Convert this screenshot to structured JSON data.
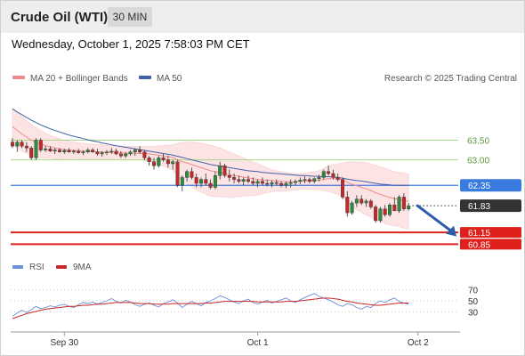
{
  "header": {
    "instrument": "Crude Oil (WTI)",
    "timeframe": "30 MIN",
    "datetime": "Wednesday, October 1, 2025 7:58:03 PM CET"
  },
  "legend": {
    "ma20_bb": "MA 20 + Bollinger Bands",
    "ma50": "MA 50",
    "attribution": "Research © 2025 Trading Central",
    "rsi": "RSI",
    "rsi_ma": "9MA"
  },
  "colors": {
    "ma20": "#f08a8a",
    "bollinger_fill": "#fde0e0",
    "ma50": "#4060a8",
    "resistance": "#a8d88a",
    "pivot": "#3a7be0",
    "current": "#333333",
    "support": "#e0201a",
    "arrow": "#2a5caa",
    "candle_up": "#2e8b3e",
    "candle_down": "#c62828",
    "rsi": "#6a8fd8",
    "rsi_ma": "#c62828"
  },
  "chart_data": [
    {
      "type": "candlestick",
      "title": "",
      "x_tick_labels": [
        "Sep 30",
        "Oct 1",
        "Oct 2"
      ],
      "ylim": [
        60.7,
        64.6
      ],
      "ohlc": [
        [
          63.45,
          63.55,
          63.3,
          63.35
        ],
        [
          63.35,
          63.5,
          63.2,
          63.45
        ],
        [
          63.45,
          63.5,
          63.3,
          63.35
        ],
        [
          63.35,
          63.45,
          63.2,
          63.3
        ],
        [
          63.3,
          63.35,
          63.0,
          63.05
        ],
        [
          63.05,
          63.55,
          63.0,
          63.5
        ],
        [
          63.5,
          63.55,
          63.2,
          63.25
        ],
        [
          63.25,
          63.35,
          63.2,
          63.28
        ],
        [
          63.28,
          63.35,
          63.2,
          63.22
        ],
        [
          63.22,
          63.3,
          63.15,
          63.25
        ],
        [
          63.25,
          63.3,
          63.18,
          63.2
        ],
        [
          63.2,
          63.28,
          63.15,
          63.24
        ],
        [
          63.24,
          63.3,
          63.18,
          63.2
        ],
        [
          63.2,
          63.26,
          63.15,
          63.22
        ],
        [
          63.22,
          63.28,
          63.16,
          63.18
        ],
        [
          63.18,
          63.24,
          63.12,
          63.2
        ],
        [
          63.2,
          63.3,
          63.16,
          63.25
        ],
        [
          63.25,
          63.3,
          63.18,
          63.2
        ],
        [
          63.2,
          63.28,
          63.1,
          63.15
        ],
        [
          63.15,
          63.22,
          63.08,
          63.18
        ],
        [
          63.18,
          63.25,
          63.12,
          63.2
        ],
        [
          63.2,
          63.3,
          63.15,
          63.22
        ],
        [
          63.22,
          63.28,
          63.12,
          63.15
        ],
        [
          63.15,
          63.22,
          63.05,
          63.1
        ],
        [
          63.1,
          63.2,
          63.05,
          63.15
        ],
        [
          63.15,
          63.25,
          63.1,
          63.2
        ],
        [
          63.2,
          63.3,
          63.1,
          63.25
        ],
        [
          63.25,
          63.35,
          63.15,
          63.2
        ],
        [
          63.2,
          63.25,
          63.0,
          63.05
        ],
        [
          63.05,
          63.1,
          62.85,
          62.95
        ],
        [
          62.95,
          63.05,
          62.75,
          62.85
        ],
        [
          62.85,
          63.1,
          62.8,
          63.05
        ],
        [
          63.05,
          63.15,
          62.95,
          63.0
        ],
        [
          63.0,
          63.1,
          62.8,
          62.9
        ],
        [
          62.9,
          63.0,
          62.75,
          62.95
        ],
        [
          62.95,
          63.0,
          62.3,
          62.35
        ],
        [
          62.35,
          62.6,
          62.2,
          62.55
        ],
        [
          62.55,
          62.75,
          62.45,
          62.7
        ],
        [
          62.7,
          62.8,
          62.5,
          62.55
        ],
        [
          62.55,
          62.65,
          62.3,
          62.4
        ],
        [
          62.4,
          62.55,
          62.3,
          62.5
        ],
        [
          62.5,
          62.65,
          62.35,
          62.4
        ],
        [
          62.4,
          62.5,
          62.25,
          62.3
        ],
        [
          62.3,
          62.7,
          62.25,
          62.6
        ],
        [
          62.6,
          62.95,
          62.5,
          62.85
        ],
        [
          62.85,
          62.9,
          62.55,
          62.6
        ],
        [
          62.6,
          62.75,
          62.45,
          62.55
        ],
        [
          62.55,
          62.65,
          62.4,
          62.5
        ],
        [
          62.5,
          62.6,
          62.4,
          62.45
        ],
        [
          62.45,
          62.55,
          62.35,
          62.5
        ],
        [
          62.5,
          62.6,
          62.4,
          62.45
        ],
        [
          62.45,
          62.55,
          62.35,
          62.4
        ],
        [
          62.4,
          62.5,
          62.3,
          62.45
        ],
        [
          62.45,
          62.55,
          62.35,
          62.4
        ],
        [
          62.4,
          62.5,
          62.32,
          62.38
        ],
        [
          62.38,
          62.48,
          62.3,
          62.42
        ],
        [
          62.42,
          62.5,
          62.35,
          62.4
        ],
        [
          62.4,
          62.45,
          62.3,
          62.35
        ],
        [
          62.35,
          62.45,
          62.28,
          62.4
        ],
        [
          62.4,
          62.5,
          62.3,
          62.42
        ],
        [
          62.42,
          62.5,
          62.35,
          62.45
        ],
        [
          62.45,
          62.55,
          62.38,
          62.48
        ],
        [
          62.48,
          62.58,
          62.4,
          62.5
        ],
        [
          62.5,
          62.55,
          62.4,
          62.45
        ],
        [
          62.45,
          62.55,
          62.4,
          62.52
        ],
        [
          62.52,
          62.62,
          62.45,
          62.55
        ],
        [
          62.55,
          62.75,
          62.5,
          62.7
        ],
        [
          62.7,
          62.85,
          62.6,
          62.65
        ],
        [
          62.65,
          62.75,
          62.5,
          62.55
        ],
        [
          62.55,
          62.65,
          62.45,
          62.5
        ],
        [
          62.5,
          62.55,
          62.0,
          62.05
        ],
        [
          62.05,
          62.2,
          61.55,
          61.65
        ],
        [
          61.65,
          61.95,
          61.6,
          61.9
        ],
        [
          61.9,
          62.1,
          61.8,
          62.0
        ],
        [
          62.0,
          62.1,
          61.85,
          61.9
        ],
        [
          61.9,
          62.0,
          61.8,
          61.95
        ],
        [
          61.95,
          62.0,
          61.75,
          61.8
        ],
        [
          61.8,
          61.85,
          61.4,
          61.45
        ],
        [
          61.45,
          61.8,
          61.4,
          61.75
        ],
        [
          61.75,
          61.85,
          61.55,
          61.6
        ],
        [
          61.6,
          61.9,
          61.55,
          61.85
        ],
        [
          61.85,
          62.05,
          61.7,
          61.7
        ],
        [
          61.7,
          62.1,
          61.65,
          62.05
        ],
        [
          62.05,
          62.15,
          61.7,
          61.75
        ],
        [
          61.75,
          61.9,
          61.7,
          61.83
        ]
      ],
      "ma20": [
        63.85,
        63.75,
        63.66,
        63.58,
        63.5,
        63.44,
        63.4,
        63.36,
        63.33,
        63.3,
        63.28,
        63.26,
        63.25,
        63.24,
        63.23,
        63.22,
        63.22,
        63.21,
        63.2,
        63.2,
        63.19,
        63.19,
        63.18,
        63.18,
        63.17,
        63.17,
        63.17,
        63.17,
        63.16,
        63.15,
        63.13,
        63.12,
        63.1,
        63.08,
        63.06,
        63.0,
        62.95,
        62.92,
        62.88,
        62.84,
        62.8,
        62.76,
        62.72,
        62.7,
        62.68,
        62.65,
        62.62,
        62.6,
        62.58,
        62.56,
        62.54,
        62.52,
        62.5,
        62.49,
        62.48,
        62.47,
        62.46,
        62.45,
        62.44,
        62.44,
        62.44,
        62.45,
        62.46,
        62.46,
        62.47,
        62.48,
        62.5,
        62.52,
        62.52,
        62.51,
        62.48,
        62.43,
        62.38,
        62.34,
        62.3,
        62.26,
        62.22,
        62.16,
        62.12,
        62.08,
        62.04,
        62.01,
        61.99,
        61.96,
        61.94
      ],
      "bb_upper": [
        64.3,
        64.2,
        64.1,
        64.0,
        63.9,
        63.82,
        63.75,
        63.68,
        63.62,
        63.58,
        63.54,
        63.5,
        63.47,
        63.45,
        63.43,
        63.42,
        63.41,
        63.4,
        63.39,
        63.38,
        63.37,
        63.36,
        63.36,
        63.35,
        63.35,
        63.34,
        63.34,
        63.34,
        63.34,
        63.34,
        63.34,
        63.35,
        63.36,
        63.37,
        63.38,
        63.42,
        63.44,
        63.45,
        63.45,
        63.44,
        63.42,
        63.4,
        63.37,
        63.34,
        63.3,
        63.25,
        63.2,
        63.15,
        63.1,
        63.05,
        63.0,
        62.95,
        62.9,
        62.85,
        62.8,
        62.75,
        62.72,
        62.7,
        62.68,
        62.66,
        62.65,
        62.65,
        62.66,
        62.68,
        62.7,
        62.72,
        62.78,
        62.85,
        62.88,
        62.9,
        62.92,
        62.94,
        62.95,
        62.95,
        62.94,
        62.92,
        62.9,
        62.86,
        62.82,
        62.78,
        62.74,
        62.7,
        62.68,
        62.66,
        62.64
      ],
      "bb_lower": [
        63.4,
        63.3,
        63.22,
        63.16,
        63.1,
        63.06,
        63.05,
        63.04,
        63.04,
        63.02,
        63.02,
        63.02,
        63.03,
        63.03,
        63.03,
        63.02,
        63.03,
        63.02,
        63.01,
        63.02,
        63.01,
        63.02,
        63.0,
        63.01,
        62.99,
        63.0,
        63.0,
        63.0,
        62.98,
        62.96,
        62.92,
        62.89,
        62.84,
        62.79,
        62.74,
        62.58,
        62.46,
        62.39,
        62.31,
        62.24,
        62.18,
        62.12,
        62.07,
        62.06,
        62.06,
        62.05,
        62.04,
        62.05,
        62.06,
        62.07,
        62.08,
        62.09,
        62.1,
        62.13,
        62.16,
        62.19,
        62.2,
        62.2,
        62.2,
        62.22,
        62.23,
        62.25,
        62.26,
        62.24,
        62.24,
        62.24,
        62.22,
        62.19,
        62.16,
        62.12,
        62.04,
        61.92,
        61.81,
        61.73,
        61.66,
        61.6,
        61.54,
        61.46,
        61.42,
        61.38,
        61.34,
        61.32,
        61.3,
        61.26,
        61.24
      ],
      "ma50": [
        64.3,
        64.22,
        64.15,
        64.08,
        64.01,
        63.95,
        63.89,
        63.84,
        63.79,
        63.75,
        63.71,
        63.67,
        63.63,
        63.6,
        63.57,
        63.54,
        63.51,
        63.48,
        63.46,
        63.43,
        63.41,
        63.38,
        63.36,
        63.34,
        63.32,
        63.3,
        63.28,
        63.26,
        63.24,
        63.22,
        63.2,
        63.18,
        63.16,
        63.14,
        63.12,
        63.09,
        63.06,
        63.03,
        63.0,
        62.97,
        62.94,
        62.91,
        62.88,
        62.86,
        62.84,
        62.82,
        62.8,
        62.78,
        62.76,
        62.74,
        62.72,
        62.71,
        62.7,
        62.68,
        62.67,
        62.66,
        62.65,
        62.64,
        62.63,
        62.62,
        62.61,
        62.6,
        62.6,
        62.59,
        62.58,
        62.58,
        62.57,
        62.57,
        62.56,
        62.55,
        62.53,
        62.51,
        62.49,
        62.47,
        62.46,
        62.44,
        62.42,
        62.4,
        62.38,
        62.37,
        62.36,
        62.35,
        62.35,
        62.35,
        62.35
      ],
      "levels": [
        {
          "label": "63.50",
          "value": 63.5,
          "kind": "resistance"
        },
        {
          "label": "63.00",
          "value": 63.0,
          "kind": "resistance"
        },
        {
          "label": "62.35",
          "value": 62.35,
          "kind": "pivot"
        },
        {
          "label": "61.83",
          "value": 61.83,
          "kind": "current"
        },
        {
          "label": "61.15",
          "value": 61.15,
          "kind": "support"
        },
        {
          "label": "60.85",
          "value": 60.85,
          "kind": "support"
        }
      ],
      "forecast_arrow": {
        "from_value": 61.83,
        "to_value": 61.05,
        "direction": "down"
      }
    },
    {
      "type": "line",
      "title": "",
      "series_names": [
        "RSI",
        "9MA"
      ],
      "yticks": [
        70,
        50,
        30
      ],
      "ylim": [
        10,
        90
      ],
      "rsi": [
        22,
        28,
        33,
        29,
        34,
        40,
        36,
        38,
        41,
        39,
        42,
        44,
        40,
        38,
        43,
        47,
        45,
        48,
        44,
        47,
        50,
        54,
        49,
        46,
        51,
        48,
        43,
        40,
        44,
        46,
        42,
        39,
        45,
        48,
        52,
        46,
        38,
        44,
        49,
        45,
        41,
        47,
        50,
        54,
        59,
        56,
        52,
        48,
        45,
        50,
        53,
        47,
        44,
        48,
        51,
        46,
        49,
        52,
        55,
        50,
        47,
        52,
        56,
        60,
        63,
        58,
        55,
        52,
        48,
        43,
        40,
        45,
        43,
        38,
        35,
        40,
        38,
        45,
        50,
        47,
        52,
        55,
        49,
        46,
        44
      ],
      "rsi_ma": [
        18,
        21,
        24,
        27,
        29,
        31,
        33,
        35,
        36,
        37,
        38,
        39,
        40,
        40,
        41,
        42,
        42,
        43,
        44,
        44,
        45,
        46,
        47,
        47,
        47,
        47,
        46,
        45,
        45,
        45,
        44,
        44,
        44,
        44,
        45,
        45,
        45,
        45,
        45,
        45,
        45,
        46,
        46,
        47,
        48,
        49,
        49,
        49,
        49,
        49,
        49,
        49,
        48,
        48,
        48,
        48,
        48,
        48,
        49,
        49,
        49,
        50,
        51,
        52,
        53,
        54,
        55,
        55,
        54,
        53,
        51,
        49,
        48,
        46,
        45,
        44,
        43,
        42,
        42,
        43,
        44,
        45,
        46,
        46,
        46
      ]
    }
  ]
}
